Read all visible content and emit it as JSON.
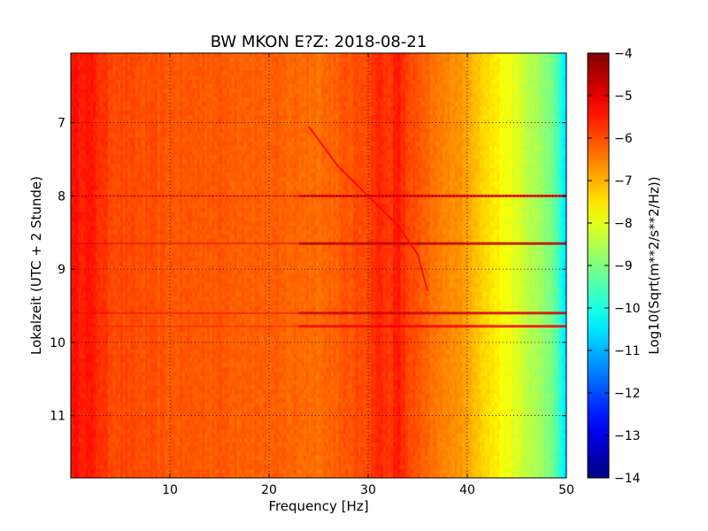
{
  "chart_data": {
    "type": "heatmap",
    "title": "BW MKON E?Z: 2018-08-21",
    "xlabel": "Frequency [Hz]",
    "ylabel": "Lokalzeit (UTC + 2 Stunde)",
    "xlim": [
      0,
      50
    ],
    "ylim": [
      11.85,
      6.05
    ],
    "x_ticks": [
      10,
      20,
      30,
      40,
      50
    ],
    "y_ticks": [
      7,
      8,
      9,
      10,
      11
    ],
    "grid": true,
    "colormap": "jet",
    "colorbar": {
      "label": "Log10(Sqrt(m**2/s**2/Hz))",
      "min": -14,
      "max": -4,
      "ticks": [
        -4,
        -5,
        -6,
        -7,
        -8,
        -9,
        -10,
        -11,
        -12,
        -13,
        -14
      ]
    },
    "frequency_profile": {
      "x": [
        0,
        2,
        4,
        6,
        10,
        15,
        20,
        25,
        28,
        30,
        31,
        32,
        33,
        34,
        35,
        36,
        38,
        39,
        40,
        41,
        42,
        43,
        44,
        45,
        46,
        47,
        48,
        49,
        49.5,
        50
      ],
      "values": [
        -5.4,
        -5.5,
        -5.9,
        -6.0,
        -6.1,
        -6.1,
        -6.2,
        -6.3,
        -6.1,
        -5.9,
        -5.6,
        -5.8,
        -5.5,
        -5.9,
        -6.1,
        -6.3,
        -6.6,
        -6.6,
        -6.9,
        -7.1,
        -7.4,
        -7.6,
        -7.9,
        -8.1,
        -8.4,
        -8.6,
        -8.9,
        -9.4,
        -10.0,
        -10.8
      ]
    },
    "features": [
      {
        "type": "horizontal_band",
        "time": 8.0,
        "value": -5.0
      },
      {
        "type": "horizontal_band",
        "time": 8.65,
        "value": -4.6
      },
      {
        "type": "horizontal_band",
        "time": 9.6,
        "value": -4.8
      },
      {
        "type": "horizontal_band",
        "time": 9.78,
        "value": -5.2
      },
      {
        "type": "drifting_line",
        "points": [
          [
            24,
            7.05
          ],
          [
            27,
            7.6
          ],
          [
            30,
            8.0
          ],
          [
            33,
            8.4
          ],
          [
            35,
            8.8
          ],
          [
            36,
            9.3
          ]
        ],
        "value": -5.2
      }
    ]
  }
}
